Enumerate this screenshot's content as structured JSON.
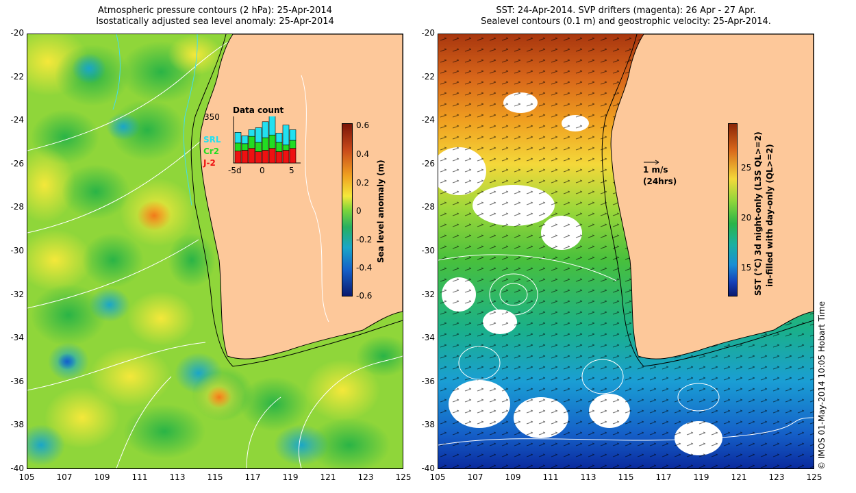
{
  "left_panel": {
    "title_line1": "Atmospheric pressure contours (2 hPa): 25-Apr-2014",
    "title_line2": "Isostatically adjusted sea level anomaly: 25-Apr-2014",
    "colorbar": {
      "label": "Sea level anomaly (m)",
      "ticks": [
        "0.6",
        "0.4",
        "0.2",
        "0",
        "-0.2",
        "-0.4",
        "-0.6"
      ]
    },
    "inset": {
      "title": "Data count",
      "ymax": "350",
      "x_ticks": [
        "-5d",
        "0",
        "5"
      ],
      "legend": [
        {
          "label": "SRL",
          "color": "#22e0f0"
        },
        {
          "label": "Cr2",
          "color": "#22dd22"
        },
        {
          "label": "J-2",
          "color": "#ee1111"
        }
      ],
      "bars": {
        "j2": [
          90,
          95,
          110,
          85,
          95,
          110,
          85,
          95,
          110
        ],
        "cr2": [
          60,
          50,
          90,
          70,
          95,
          100,
          70,
          40,
          60
        ],
        "srl": [
          80,
          60,
          50,
          110,
          120,
          170,
          70,
          150,
          80
        ]
      }
    }
  },
  "right_panel": {
    "title_line1": "SST: 24-Apr-2014. SVP drifters (magenta): 26 Apr - 27 Apr.",
    "title_line2": "Sealevel contours (0.1 m) and geostrophic velocity: 25-Apr-2014.",
    "colorbar": {
      "label_line1": "SST (°C) 3d night-only (L3S QL>=2)",
      "label_line2": "in-filled with day-only (QL>=2)",
      "ticks": [
        "25",
        "20",
        "15"
      ]
    },
    "velocity_scale": {
      "line1": "1 m/s",
      "line2": "(24hrs)"
    }
  },
  "axes": {
    "y_ticks": [
      "-20",
      "-22",
      "-24",
      "-26",
      "-28",
      "-30",
      "-32",
      "-34",
      "-36",
      "-38",
      "-40"
    ],
    "x_ticks": [
      "105",
      "107",
      "109",
      "111",
      "113",
      "115",
      "117",
      "119",
      "121",
      "123",
      "125"
    ]
  },
  "credit": "© IMOS 01-May-2014 10:05 Hobart Time"
}
